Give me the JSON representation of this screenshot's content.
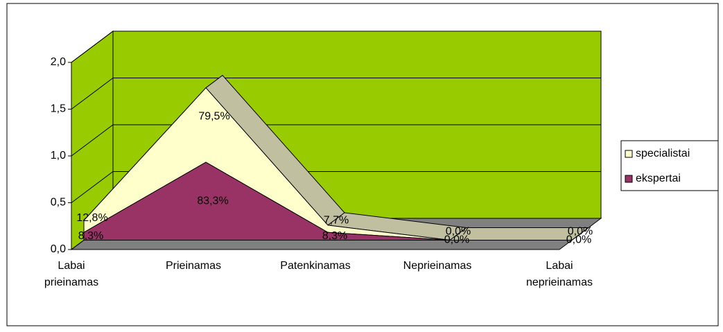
{
  "chart_data": {
    "type": "area3d_stacked",
    "categories": [
      "Labai prieinamas",
      "Prieinamas",
      "Patenkinamas",
      "Neprieinamas",
      "Labai neprieinamas"
    ],
    "series": [
      {
        "name": "ekspertai",
        "color": "#993366",
        "values": [
          0.083,
          0.833,
          0.083,
          0,
          0
        ],
        "value_labels": [
          "8,3%",
          "83,3%",
          "8,3%",
          "0,0%",
          "0,0%"
        ]
      },
      {
        "name": "specialistai",
        "color": "#ffffcc",
        "values": [
          0.128,
          0.795,
          0.077,
          0,
          0
        ],
        "value_labels": [
          "12,8%",
          "79,5%",
          "7,7%",
          "0,0%",
          "0,0%"
        ]
      }
    ],
    "ylim": [
      0,
      2
    ],
    "yticks": [
      {
        "value": 0,
        "label": "0,0"
      },
      {
        "value": 0.5,
        "label": "0,5"
      },
      {
        "value": 1,
        "label": "1,0"
      },
      {
        "value": 1.5,
        "label": "1,5"
      },
      {
        "value": 2,
        "label": "2,0"
      }
    ],
    "grid": true,
    "legend": "right",
    "wall_color": "#99cc00",
    "floor_color": "#808080"
  }
}
